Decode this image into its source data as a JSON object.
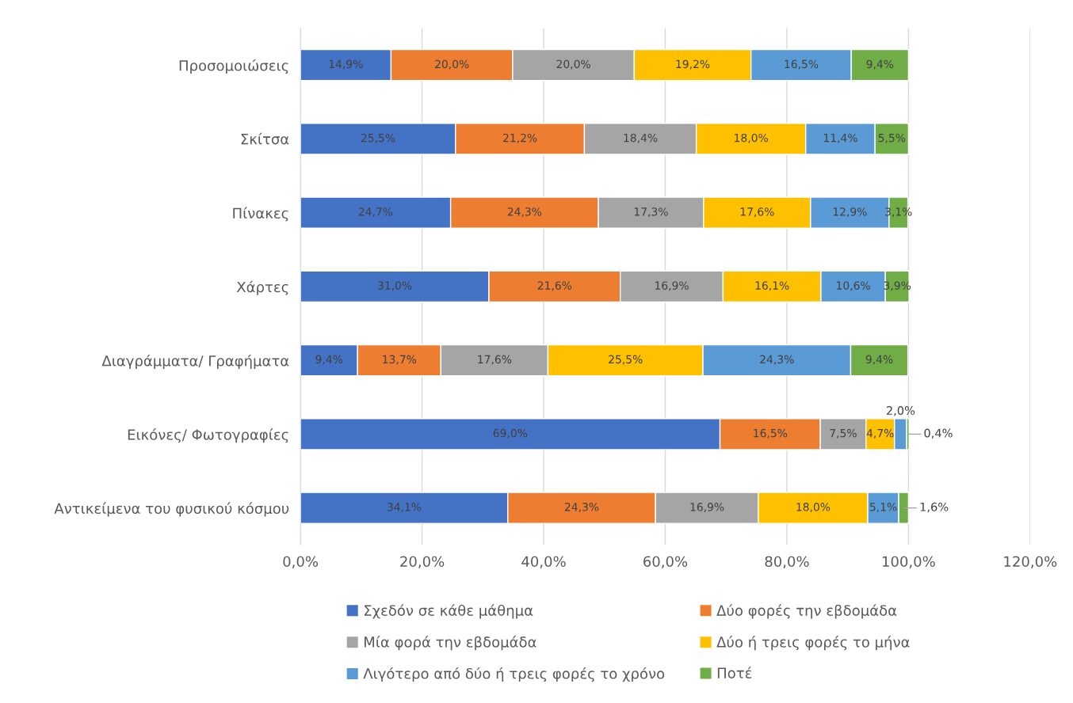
{
  "chart_data": {
    "type": "bar",
    "orientation": "horizontal",
    "stacked": true,
    "grid": "x",
    "legend": "bottom",
    "categories": [
      "Προσομοιώσεις",
      "Σκίτσα",
      "Πίνακες",
      "Χάρτες",
      "Διαγράμματα/ Γραφήματα",
      "Εικόνες/ Φωτογραφίες",
      "Αντικείμενα του φυσικού κόσμου"
    ],
    "xlim": [
      0,
      120
    ],
    "xticks": [
      {
        "value": 0,
        "label": "0,0%"
      },
      {
        "value": 20,
        "label": "20,0%"
      },
      {
        "value": 40,
        "label": "40,0%"
      },
      {
        "value": 60,
        "label": "60,0%"
      },
      {
        "value": 80,
        "label": "80,0%"
      },
      {
        "value": 100,
        "label": "100,0%"
      },
      {
        "value": 120,
        "label": "120,0%"
      }
    ],
    "series": [
      {
        "name": "Σχεδόν σε κάθε μάθημα",
        "color": "#4472c4",
        "values": [
          14.9,
          25.5,
          24.7,
          31.0,
          9.4,
          69.0,
          34.1
        ],
        "value_labels": [
          "14,9%",
          "25,5%",
          "24,7%",
          "31,0%",
          "9,4%",
          "69,0%",
          "34,1%"
        ]
      },
      {
        "name": "Δύο φορές την εβδομάδα",
        "color": "#ed7d31",
        "values": [
          20.0,
          21.2,
          24.3,
          21.6,
          13.7,
          16.5,
          24.3
        ],
        "value_labels": [
          "20,0%",
          "21,2%",
          "24,3%",
          "21,6%",
          "13,7%",
          "16,5%",
          "24,3%"
        ]
      },
      {
        "name": "Μία φορά την εβδομάδα",
        "color": "#a5a5a5",
        "values": [
          20.0,
          18.4,
          17.3,
          16.9,
          17.6,
          7.5,
          16.9
        ],
        "value_labels": [
          "20,0%",
          "18,4%",
          "17,3%",
          "16,9%",
          "17,6%",
          "7,5%",
          "16,9%"
        ]
      },
      {
        "name": "Δύο ή τρεις φορές το μήνα",
        "color": "#ffc000",
        "values": [
          19.2,
          18.0,
          17.6,
          16.1,
          25.5,
          4.7,
          18.0
        ],
        "value_labels": [
          "19,2%",
          "18,0%",
          "17,6%",
          "16,1%",
          "25,5%",
          "4,7%",
          "18,0%"
        ]
      },
      {
        "name": "Λιγότερο από δύο ή τρεις φορές το χρόνο",
        "color": "#5b9bd5",
        "values": [
          16.5,
          11.4,
          12.9,
          10.6,
          24.3,
          2.0,
          5.1
        ],
        "value_labels": [
          "16,5%",
          "11,4%",
          "12,9%",
          "10,6%",
          "24,3%",
          "2,0%",
          "5,1%"
        ]
      },
      {
        "name": "Ποτέ",
        "color": "#70ad47",
        "values": [
          9.4,
          5.5,
          3.1,
          3.9,
          9.4,
          0.4,
          1.6
        ],
        "value_labels": [
          "9,4%",
          "5,5%",
          "3,1%",
          "3,9%",
          "9,4%",
          "0,4%",
          "1,6%"
        ]
      }
    ]
  }
}
